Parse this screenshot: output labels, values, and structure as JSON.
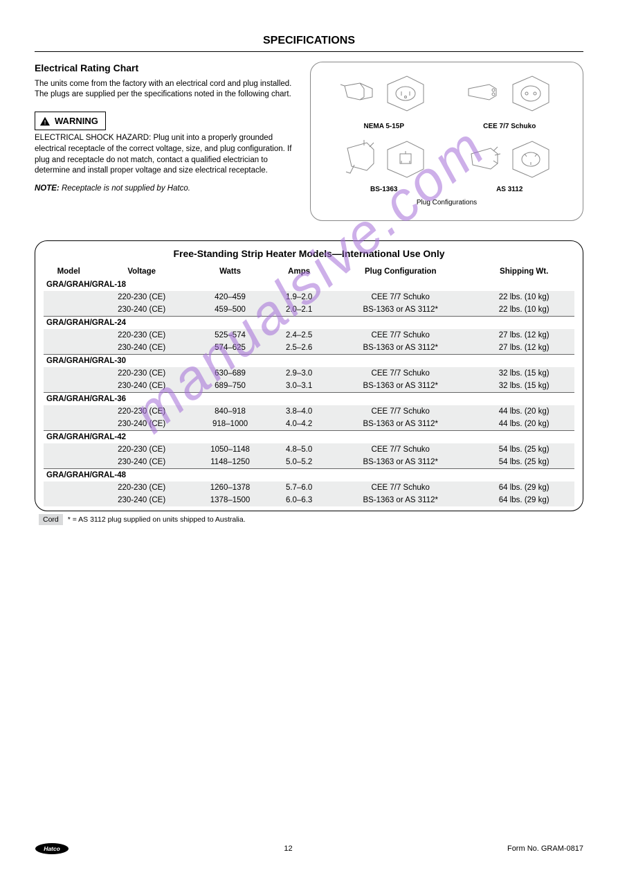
{
  "header": "SPECIFICATIONS",
  "left_col": {
    "heading": "Electrical Rating Chart",
    "intro": "The units come from the factory with an electrical cord and plug installed. The plugs are supplied per the specifications noted in the following chart.",
    "warning_label": "WARNING",
    "warning_text": "ELECTRICAL SHOCK HAZARD: Plug unit into a properly grounded electrical receptacle of the correct voltage, size, and plug configuration. If plug and receptacle do not match, contact a qualified electrician to determine and install proper voltage and size electrical receptacle.",
    "note_label": "NOTE:",
    "note_text": "Receptacle is not supplied by Hatco."
  },
  "plug_panel": {
    "plugs": [
      {
        "label": "NEMA 5-15P"
      },
      {
        "label": "CEE 7/7 Schuko"
      },
      {
        "label": "BS-1363"
      },
      {
        "label": "AS 3112"
      }
    ],
    "caption": "Plug Configurations"
  },
  "table": {
    "title": "Free-Standing Strip Heater Models—International Use Only",
    "columns": [
      "Model",
      "Voltage",
      "Watts",
      "Amps",
      "Plug Configuration",
      "Shipping Wt."
    ],
    "groups": [
      {
        "model": "GRA/GRAH/GRAL-18",
        "rows": [
          [
            "",
            "220-230 (CE)",
            "420–459",
            "1.9–2.0",
            "CEE 7/7 Schuko",
            "22 lbs. (10 kg)"
          ],
          [
            "",
            "230-240 (CE)",
            "459–500",
            "2.0–2.1",
            "BS-1363 or AS 3112*",
            "22 lbs. (10 kg)"
          ]
        ]
      },
      {
        "model": "GRA/GRAH/GRAL-24",
        "rows": [
          [
            "",
            "220-230 (CE)",
            "525–574",
            "2.4–2.5",
            "CEE 7/7 Schuko",
            "27 lbs. (12 kg)"
          ],
          [
            "",
            "230-240 (CE)",
            "574–625",
            "2.5–2.6",
            "BS-1363 or AS 3112*",
            "27 lbs. (12 kg)"
          ]
        ]
      },
      {
        "model": "GRA/GRAH/GRAL-30",
        "rows": [
          [
            "",
            "220-230 (CE)",
            "630–689",
            "2.9–3.0",
            "CEE 7/7 Schuko",
            "32 lbs. (15 kg)"
          ],
          [
            "",
            "230-240 (CE)",
            "689–750",
            "3.0–3.1",
            "BS-1363 or AS 3112*",
            "32 lbs. (15 kg)"
          ]
        ]
      },
      {
        "model": "GRA/GRAH/GRAL-36",
        "rows": [
          [
            "",
            "220-230 (CE)",
            "840–918",
            "3.8–4.0",
            "CEE 7/7 Schuko",
            "44 lbs. (20 kg)"
          ],
          [
            "",
            "230-240 (CE)",
            "918–1000",
            "4.0–4.2",
            "BS-1363 or AS 3112*",
            "44 lbs. (20 kg)"
          ]
        ]
      },
      {
        "model": "GRA/GRAH/GRAL-42",
        "rows": [
          [
            "",
            "220-230 (CE)",
            "1050–1148",
            "4.8–5.0",
            "CEE 7/7 Schuko",
            "54 lbs. (25 kg)"
          ],
          [
            "",
            "230-240 (CE)",
            "1148–1250",
            "5.0–5.2",
            "BS-1363 or AS 3112*",
            "54 lbs. (25 kg)"
          ]
        ]
      },
      {
        "model": "GRA/GRAH/GRAL-48",
        "rows": [
          [
            "",
            "220-230 (CE)",
            "1260–1378",
            "5.7–6.0",
            "CEE 7/7 Schuko",
            "64 lbs. (29 kg)"
          ],
          [
            "",
            "230-240 (CE)",
            "1378–1500",
            "6.0–6.3",
            "BS-1363 or AS 3112*",
            "64 lbs. (29 kg)"
          ]
        ]
      }
    ],
    "footnote_flag": "Cord",
    "footnote": "* = AS 3112 plug supplied on units shipped to Australia.",
    "colors": {
      "shade": "#eceded",
      "border": "#666666"
    }
  },
  "footer": {
    "page": "12",
    "form": "Form No. GRAM-0817"
  }
}
